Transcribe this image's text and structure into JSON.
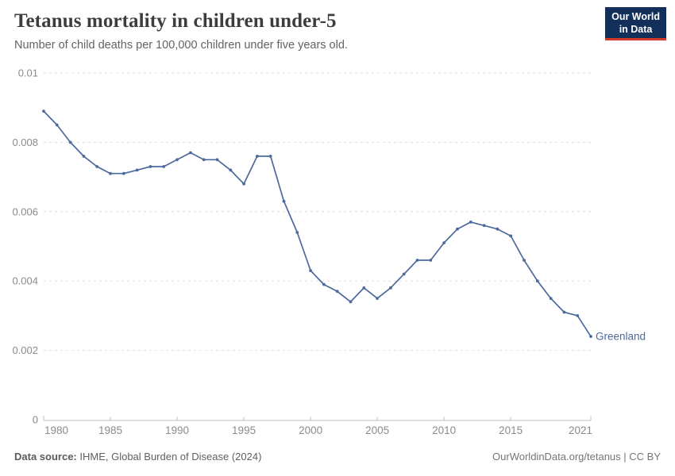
{
  "header": {
    "title": "Tetanus mortality in children under-5",
    "subtitle": "Number of child deaths per 100,000 children under five years old.",
    "logo": {
      "line1": "Our World",
      "line2": "in Data",
      "bg_color": "#12305a",
      "accent_color": "#d43a2a"
    }
  },
  "chart_data": {
    "type": "line",
    "title": "Tetanus mortality in children under-5",
    "subtitle": "Number of child deaths per 100,000 children under five years old.",
    "xlabel": "",
    "ylabel": "",
    "x_range": [
      1980,
      2021
    ],
    "ylim": [
      0,
      0.01
    ],
    "grid": "horizontal-dashed",
    "legend_position": "end-of-line-label",
    "y_ticks": [
      {
        "value": 0,
        "label": "0"
      },
      {
        "value": 0.002,
        "label": "0.002"
      },
      {
        "value": 0.004,
        "label": "0.004"
      },
      {
        "value": 0.006,
        "label": "0.006"
      },
      {
        "value": 0.008,
        "label": "0.008"
      },
      {
        "value": 0.01,
        "label": "0.01"
      }
    ],
    "x_ticks": [
      {
        "year": 1980,
        "label": "1980"
      },
      {
        "year": 1985,
        "label": "1985"
      },
      {
        "year": 1990,
        "label": "1990"
      },
      {
        "year": 1995,
        "label": "1995"
      },
      {
        "year": 2000,
        "label": "2000"
      },
      {
        "year": 2005,
        "label": "2005"
      },
      {
        "year": 2010,
        "label": "2010"
      },
      {
        "year": 2015,
        "label": "2015"
      },
      {
        "year": 2021,
        "label": "2021"
      }
    ],
    "series": [
      {
        "name": "Greenland",
        "color": "#4c6a9c",
        "x": [
          1980,
          1981,
          1982,
          1983,
          1984,
          1985,
          1986,
          1987,
          1988,
          1989,
          1990,
          1991,
          1992,
          1993,
          1994,
          1995,
          1996,
          1997,
          1998,
          1999,
          2000,
          2001,
          2002,
          2003,
          2004,
          2005,
          2006,
          2007,
          2008,
          2009,
          2010,
          2011,
          2012,
          2013,
          2014,
          2015,
          2016,
          2017,
          2018,
          2019,
          2020,
          2021
        ],
        "values": [
          0.0089,
          0.0085,
          0.008,
          0.0076,
          0.0073,
          0.0071,
          0.0071,
          0.0072,
          0.0073,
          0.0073,
          0.0075,
          0.0077,
          0.0075,
          0.0075,
          0.0072,
          0.0068,
          0.0076,
          0.0076,
          0.0063,
          0.0054,
          0.0043,
          0.0039,
          0.0037,
          0.0034,
          0.0038,
          0.0035,
          0.0038,
          0.0042,
          0.0046,
          0.0046,
          0.0051,
          0.0055,
          0.0057,
          0.0056,
          0.0055,
          0.0053,
          0.0046,
          0.004,
          0.0035,
          0.0031,
          0.003,
          0.0024
        ]
      }
    ]
  },
  "footer": {
    "source_label": "Data source:",
    "source_text": " IHME, Global Burden of Disease (2024)",
    "right_text": "OurWorldinData.org/tetanus | CC BY"
  },
  "colors": {
    "line": "#4c6a9c",
    "gridline": "#dedede",
    "axis": "#c0c0c0",
    "tick_label": "#8b8b8b",
    "title": "#3d3d3d",
    "subtitle": "#636363"
  }
}
